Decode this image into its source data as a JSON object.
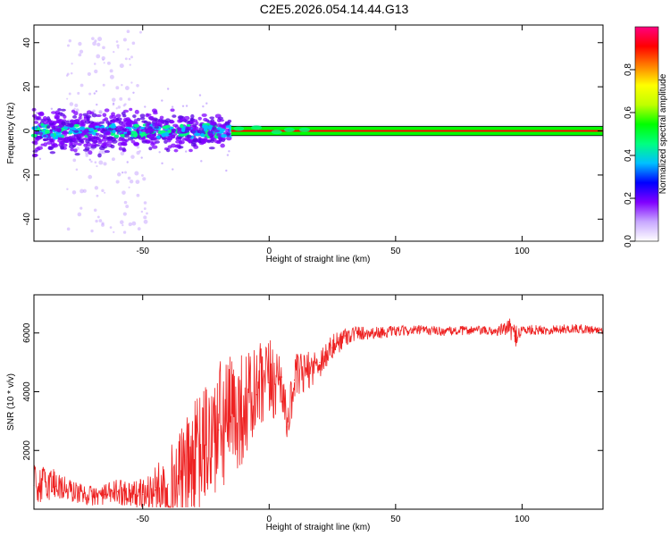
{
  "title": "C2E5.2026.054.14.44.G13",
  "chart_data": [
    {
      "type": "heatmap",
      "name": "spectrogram",
      "xlabel": "Height of straight line (km)",
      "ylabel": "Frequency (Hz)",
      "xlim": [
        -93,
        132
      ],
      "ylim": [
        -50,
        48
      ],
      "xticks": [
        -50,
        0,
        50,
        100
      ],
      "yticks": [
        -40,
        -20,
        0,
        20,
        40
      ],
      "xtick_labels": [
        "-50",
        "0",
        "50",
        "100"
      ],
      "ytick_labels": [
        "-40",
        "-20",
        "0",
        "20",
        "40"
      ],
      "signal_line_hz": 0,
      "noisy_region_km": [
        -93,
        -15
      ],
      "scattered_outliers_km": [
        -80,
        -48
      ],
      "colorbar": {
        "label": "Normalized spectral amplitude",
        "range": [
          0.0,
          1.0
        ],
        "ticks": [
          0.0,
          0.2,
          0.4,
          0.6,
          0.8
        ],
        "tick_labels": [
          "0.0",
          "0.2",
          "0.4",
          "0.6",
          "0.8"
        ],
        "colors": [
          "#ffffff",
          "#c8a8ff",
          "#8000ff",
          "#0000ff",
          "#00c0ff",
          "#00ff80",
          "#00ff00",
          "#c0ff00",
          "#ffff00",
          "#ff8000",
          "#ff0000",
          "#ff0080"
        ]
      }
    },
    {
      "type": "line",
      "name": "snr",
      "xlabel": "Height of straight line (km)",
      "ylabel": "SNR (10 * v/v)",
      "xlim": [
        -93,
        132
      ],
      "ylim": [
        0,
        7300
      ],
      "xticks": [
        -50,
        0,
        50,
        100
      ],
      "yticks": [
        2000,
        4000,
        6000
      ],
      "xtick_labels": [
        "-50",
        "0",
        "50",
        "100"
      ],
      "ytick_labels": [
        "2000",
        "4000",
        "6000"
      ],
      "color": "#ee2222",
      "series": [
        {
          "name": "SNR",
          "x": [
            -93,
            -85,
            -80,
            -75,
            -70,
            -65,
            -60,
            -55,
            -50,
            -45,
            -40,
            -35,
            -30,
            -25,
            -20,
            -15,
            -10,
            -5,
            0,
            5,
            7,
            10,
            15,
            20,
            25,
            30,
            35,
            40,
            50,
            60,
            70,
            80,
            90,
            95,
            97,
            100,
            110,
            120,
            132
          ],
          "y": [
            800,
            900,
            650,
            550,
            450,
            500,
            600,
            550,
            500,
            650,
            850,
            1100,
            1600,
            2200,
            2700,
            3100,
            3500,
            3900,
            4300,
            4500,
            2800,
            4400,
            4700,
            5000,
            5500,
            5900,
            6000,
            6000,
            6050,
            6100,
            6050,
            6100,
            6050,
            6200,
            5900,
            6100,
            6100,
            6150,
            6100
          ],
          "noise_amplitude": [
            700,
            600,
            450,
            350,
            350,
            350,
            450,
            450,
            550,
            800,
            1200,
            1600,
            2000,
            2200,
            2400,
            2200,
            1900,
            1700,
            1500,
            1200,
            500,
            900,
            650,
            550,
            450,
            350,
            260,
            220,
            180,
            160,
            160,
            160,
            160,
            300,
            450,
            180,
            160,
            160,
            150
          ]
        }
      ]
    }
  ]
}
